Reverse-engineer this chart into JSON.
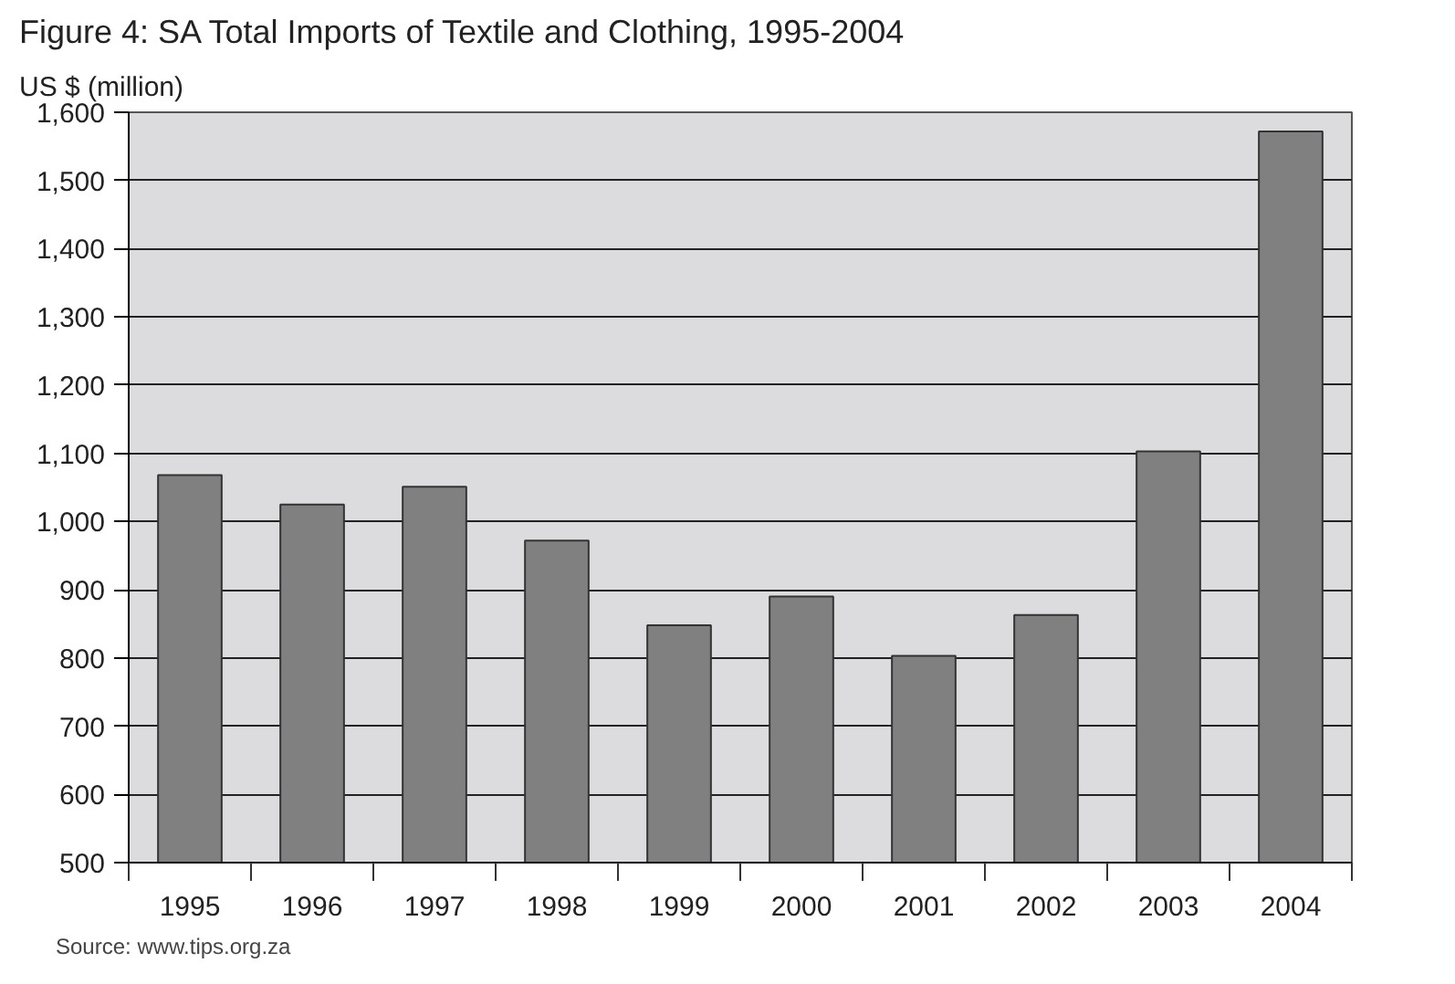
{
  "chart_data": {
    "type": "bar",
    "title": "Figure 4: SA Total Imports of Textile and Clothing, 1995-2004",
    "ylabel": "US $ (million)",
    "categories": [
      "1995",
      "1996",
      "1997",
      "1998",
      "1999",
      "2000",
      "2001",
      "2002",
      "2003",
      "2004"
    ],
    "values": [
      1068,
      1025,
      1051,
      972,
      848,
      890,
      803,
      863,
      1103,
      1572
    ],
    "color": "#808080",
    "ylim": [
      500,
      1600
    ],
    "yticks": [
      {
        "value": 500,
        "label": "500"
      },
      {
        "value": 600,
        "label": "600"
      },
      {
        "value": 700,
        "label": "700"
      },
      {
        "value": 800,
        "label": "800"
      },
      {
        "value": 900,
        "label": "900"
      },
      {
        "value": 1000,
        "label": "1,000"
      },
      {
        "value": 1100,
        "label": "1,100"
      },
      {
        "value": 1200,
        "label": "1,200"
      },
      {
        "value": 1300,
        "label": "1,300"
      },
      {
        "value": 1400,
        "label": "1,400"
      },
      {
        "value": 1500,
        "label": "1,500"
      },
      {
        "value": 1600,
        "label": "1,600"
      }
    ],
    "grid": "y",
    "annotations": [
      "Source: www.tips.org.za"
    ]
  }
}
